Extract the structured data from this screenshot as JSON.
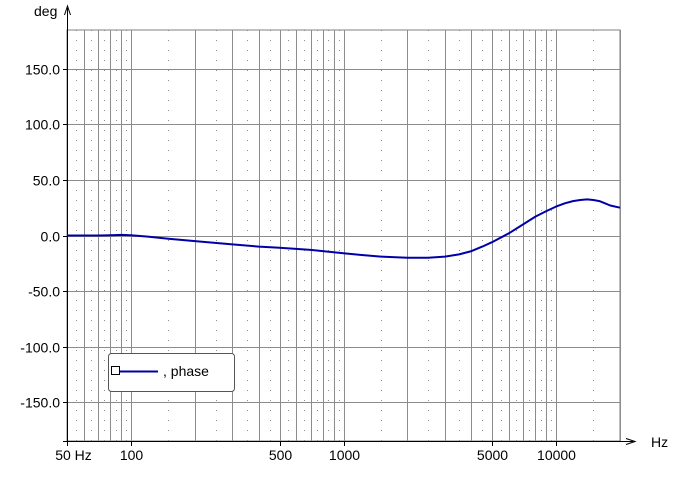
{
  "chart_data": {
    "type": "line",
    "xscale": "log",
    "xlabel": "Hz",
    "ylabel": "deg",
    "xlim": [
      50,
      20000
    ],
    "ylim": [
      -185,
      185
    ],
    "grid": true,
    "xticks": [
      {
        "value": 50,
        "label": "50 Hz"
      },
      {
        "value": 100,
        "label": "100"
      },
      {
        "value": 500,
        "label": "500"
      },
      {
        "value": 1000,
        "label": "1000"
      },
      {
        "value": 5000,
        "label": "5000"
      },
      {
        "value": 10000,
        "label": "10000"
      }
    ],
    "yticks": [
      {
        "value": 150,
        "label": "150.0"
      },
      {
        "value": 100,
        "label": "100.0"
      },
      {
        "value": 50,
        "label": "50.0"
      },
      {
        "value": 0,
        "label": "0.0"
      },
      {
        "value": -50,
        "label": "-50.0"
      },
      {
        "value": -100,
        "label": "-100.0"
      },
      {
        "value": -150,
        "label": "-150.0"
      }
    ],
    "legend": {
      "label": ", phase",
      "placement": "bottom-left"
    },
    "series": [
      {
        "name": ", phase",
        "color": "#0000aa",
        "x": [
          50,
          60,
          70,
          80,
          90,
          100,
          120,
          150,
          200,
          300,
          400,
          500,
          700,
          900,
          1000,
          1200,
          1500,
          2000,
          2500,
          3000,
          3500,
          4000,
          4500,
          5000,
          6000,
          7000,
          8000,
          9000,
          10000,
          11000,
          12000,
          13000,
          14000,
          15000,
          16000,
          17000,
          18000,
          20000
        ],
        "y": [
          0,
          0,
          0,
          0.3,
          0.5,
          0.3,
          -1,
          -3,
          -5,
          -8,
          -10,
          -11,
          -13,
          -15,
          -16,
          -17.5,
          -19,
          -20,
          -20,
          -19,
          -17,
          -14,
          -10,
          -6,
          2,
          10,
          17,
          22,
          26,
          29,
          31,
          32,
          32.5,
          32,
          31,
          29,
          27,
          25
        ]
      }
    ]
  }
}
